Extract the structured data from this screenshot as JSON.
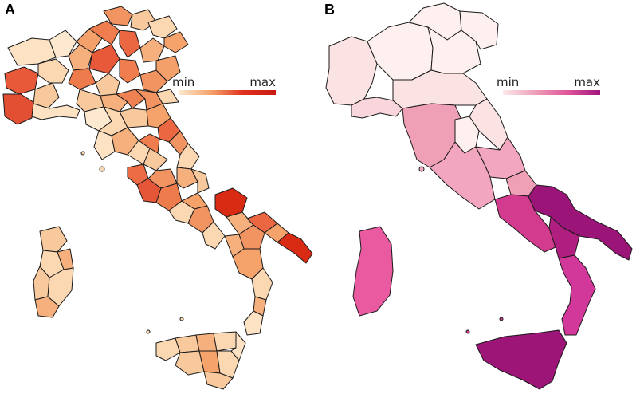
{
  "panels": [
    {
      "label": "A",
      "legend": {
        "min": "min",
        "max": "max"
      },
      "colors": {
        "low": "#fde9cf",
        "mid": "#f5a36a",
        "high": "#e0301e",
        "max": "#c81a12"
      }
    },
    {
      "label": "B",
      "legend": {
        "min": "min",
        "max": "max"
      },
      "colors": {
        "low": "#fbeaea",
        "mid": "#ee9fb8",
        "high": "#e0559a",
        "max": "#a0167e"
      }
    }
  ]
}
